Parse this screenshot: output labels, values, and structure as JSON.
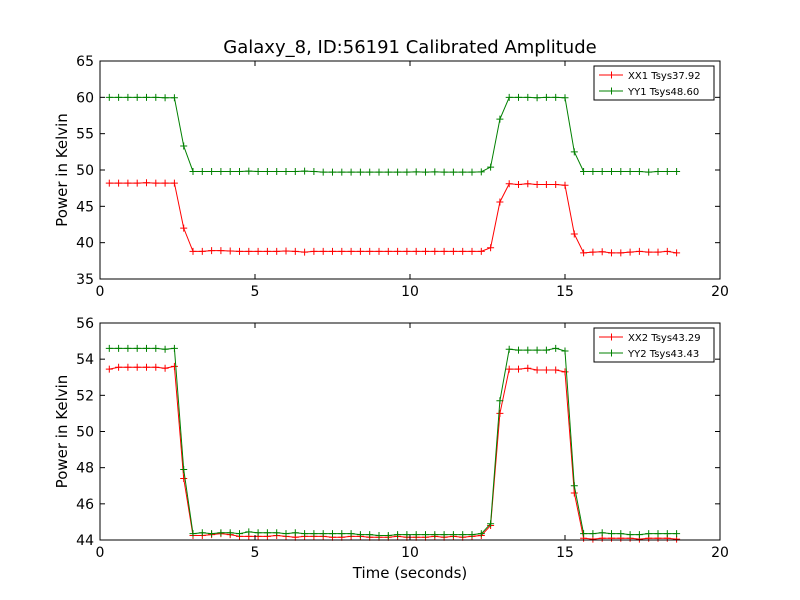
{
  "figure_title": "Galaxy_8, ID:56191 Calibrated Amplitude",
  "chart_data": [
    {
      "type": "line",
      "title": "Galaxy_8, ID:56191 Calibrated Amplitude",
      "xlabel": "",
      "ylabel": "Power in Kelvin",
      "xlim": [
        0,
        20
      ],
      "ylim": [
        35,
        65
      ],
      "xticks": [
        0,
        5,
        10,
        15,
        20
      ],
      "yticks": [
        35,
        40,
        45,
        50,
        55,
        60,
        65
      ],
      "grid": false,
      "legend_position": "top-right",
      "x": [
        0.3,
        0.6,
        0.9,
        1.2,
        1.5,
        1.8,
        2.1,
        2.4,
        2.7,
        3.0,
        3.3,
        3.6,
        3.9,
        4.2,
        4.5,
        4.8,
        5.1,
        5.4,
        5.7,
        6.0,
        6.3,
        6.6,
        6.9,
        7.2,
        7.5,
        7.8,
        8.1,
        8.4,
        8.7,
        9.0,
        9.3,
        9.6,
        9.9,
        10.2,
        10.5,
        10.8,
        11.1,
        11.4,
        11.7,
        12.0,
        12.3,
        12.6,
        12.9,
        13.2,
        13.5,
        13.8,
        14.1,
        14.4,
        14.7,
        15.0,
        15.3,
        15.6,
        15.9,
        16.2,
        16.5,
        16.8,
        17.1,
        17.4,
        17.7,
        18.0,
        18.3,
        18.6
      ],
      "series": [
        {
          "name": "XX1 Tsys37.92",
          "color": "#ff0000",
          "values": [
            48.2,
            48.2,
            48.2,
            48.2,
            48.25,
            48.2,
            48.2,
            48.2,
            42.0,
            38.8,
            38.8,
            38.9,
            38.9,
            38.85,
            38.8,
            38.8,
            38.8,
            38.8,
            38.8,
            38.85,
            38.8,
            38.7,
            38.8,
            38.8,
            38.8,
            38.8,
            38.8,
            38.8,
            38.8,
            38.8,
            38.8,
            38.8,
            38.8,
            38.8,
            38.8,
            38.8,
            38.8,
            38.8,
            38.8,
            38.8,
            38.8,
            39.3,
            45.6,
            48.1,
            48.0,
            48.1,
            48.0,
            48.0,
            48.0,
            47.9,
            41.2,
            38.6,
            38.7,
            38.75,
            38.6,
            38.6,
            38.7,
            38.8,
            38.7,
            38.7,
            38.8,
            38.6
          ]
        },
        {
          "name": "YY1 Tsys48.60",
          "color": "#008000",
          "values": [
            60.0,
            60.0,
            60.0,
            60.0,
            60.0,
            60.0,
            59.95,
            59.95,
            53.3,
            49.8,
            49.8,
            49.8,
            49.8,
            49.8,
            49.8,
            49.85,
            49.8,
            49.8,
            49.8,
            49.8,
            49.8,
            49.85,
            49.8,
            49.7,
            49.7,
            49.7,
            49.7,
            49.7,
            49.7,
            49.7,
            49.7,
            49.7,
            49.7,
            49.75,
            49.7,
            49.75,
            49.7,
            49.7,
            49.7,
            49.7,
            49.75,
            50.4,
            57.0,
            60.0,
            60.0,
            60.0,
            59.95,
            60.0,
            60.0,
            59.95,
            52.5,
            49.8,
            49.8,
            49.8,
            49.8,
            49.8,
            49.8,
            49.8,
            49.7,
            49.8,
            49.8,
            49.8
          ]
        }
      ]
    },
    {
      "type": "line",
      "title": "",
      "xlabel": "Time (seconds)",
      "ylabel": "Power in Kelvin",
      "xlim": [
        0,
        20
      ],
      "ylim": [
        44,
        56
      ],
      "xticks": [
        0,
        5,
        10,
        15,
        20
      ],
      "yticks": [
        44,
        46,
        48,
        50,
        52,
        54,
        56
      ],
      "grid": false,
      "legend_position": "top-right",
      "x": [
        0.3,
        0.6,
        0.9,
        1.2,
        1.5,
        1.8,
        2.1,
        2.4,
        2.7,
        3.0,
        3.3,
        3.6,
        3.9,
        4.2,
        4.5,
        4.8,
        5.1,
        5.4,
        5.7,
        6.0,
        6.3,
        6.6,
        6.9,
        7.2,
        7.5,
        7.8,
        8.1,
        8.4,
        8.7,
        9.0,
        9.3,
        9.6,
        9.9,
        10.2,
        10.5,
        10.8,
        11.1,
        11.4,
        11.7,
        12.0,
        12.3,
        12.6,
        12.9,
        13.2,
        13.5,
        13.8,
        14.1,
        14.4,
        14.7,
        15.0,
        15.3,
        15.6,
        15.9,
        16.2,
        16.5,
        16.8,
        17.1,
        17.4,
        17.7,
        18.0,
        18.3,
        18.6
      ],
      "series": [
        {
          "name": "XX2 Tsys43.29",
          "color": "#ff0000",
          "values": [
            53.45,
            53.55,
            53.55,
            53.55,
            53.55,
            53.55,
            53.5,
            53.6,
            47.4,
            44.25,
            44.25,
            44.3,
            44.35,
            44.3,
            44.2,
            44.2,
            44.2,
            44.2,
            44.25,
            44.2,
            44.15,
            44.2,
            44.2,
            44.2,
            44.15,
            44.15,
            44.2,
            44.2,
            44.15,
            44.15,
            44.15,
            44.2,
            44.15,
            44.15,
            44.15,
            44.2,
            44.15,
            44.2,
            44.15,
            44.2,
            44.25,
            44.8,
            51.0,
            53.45,
            53.45,
            53.5,
            53.4,
            53.4,
            53.4,
            53.3,
            46.6,
            44.1,
            44.05,
            44.1,
            44.1,
            44.1,
            44.1,
            44.05,
            44.1,
            44.1,
            44.1,
            44.05
          ]
        },
        {
          "name": "YY2 Tsys43.43",
          "color": "#008000",
          "values": [
            54.6,
            54.6,
            54.6,
            54.6,
            54.6,
            54.6,
            54.55,
            54.6,
            47.9,
            44.35,
            44.4,
            44.35,
            44.4,
            44.4,
            44.35,
            44.45,
            44.4,
            44.4,
            44.4,
            44.35,
            44.4,
            44.35,
            44.35,
            44.35,
            44.35,
            44.35,
            44.35,
            44.3,
            44.3,
            44.25,
            44.25,
            44.3,
            44.3,
            44.3,
            44.3,
            44.3,
            44.3,
            44.3,
            44.3,
            44.3,
            44.35,
            44.9,
            51.7,
            54.55,
            54.5,
            54.5,
            54.5,
            54.5,
            54.6,
            54.45,
            47.0,
            44.35,
            44.35,
            44.4,
            44.35,
            44.35,
            44.3,
            44.3,
            44.35,
            44.35,
            44.35,
            44.35
          ]
        }
      ]
    }
  ]
}
